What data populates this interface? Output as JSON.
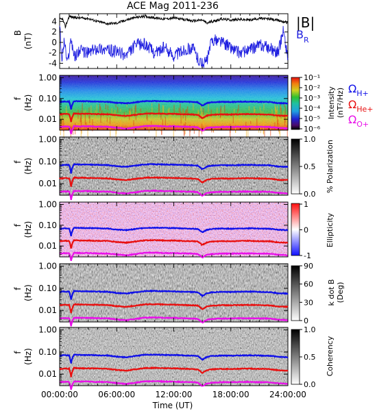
{
  "title": "ACE Mag 2011-236",
  "xaxis": {
    "label": "Time (UT)",
    "ticks": [
      "00:00:00",
      "06:00:00",
      "12:00:00",
      "18:00:00",
      "24:00:00"
    ],
    "range_hours": [
      0,
      24
    ]
  },
  "colors": {
    "B_total": "#000000",
    "B_R": "#1f1fe0",
    "H_plus": "#1010e8",
    "He_plus": "#e81010",
    "O_plus": "#e810e8"
  },
  "chart_data": [
    {
      "type": "line",
      "panel": "B",
      "ylabel_line1": "B",
      "ylabel_line2": "(nT)",
      "yticks": [
        "4",
        "2",
        "0",
        "-2",
        "-4"
      ],
      "ylim": [
        -5,
        5.5
      ],
      "legend": [
        "|B|",
        "B_R"
      ],
      "legend_text": {
        "bmag": "|B|",
        "br_main": "B",
        "br_sub": "R"
      },
      "series": [
        {
          "name": "|B|",
          "x": [
            0,
            0.3,
            0.6,
            1.0,
            1.5,
            2,
            3,
            4,
            5,
            6,
            7,
            8,
            9,
            10,
            11,
            12,
            13,
            14,
            15,
            15.5,
            16,
            17,
            18,
            19,
            20,
            21,
            22,
            23,
            24
          ],
          "values": [
            4.4,
            4.5,
            3.0,
            5.0,
            4.8,
            4.7,
            4.6,
            4.0,
            3.6,
            3.7,
            4.3,
            4.8,
            5.0,
            4.7,
            4.5,
            4.7,
            4.4,
            4.1,
            4.3,
            3.7,
            4.0,
            4.5,
            4.3,
            4.4,
            4.3,
            4.6,
            4.5,
            4.2,
            3.8
          ]
        },
        {
          "name": "B_R",
          "x": [
            0,
            0.2,
            0.5,
            0.8,
            1.2,
            1.6,
            2,
            3,
            4,
            5,
            6,
            7,
            8,
            9,
            10,
            11,
            12,
            13,
            14,
            14.5,
            15,
            15.5,
            16,
            17,
            18,
            19,
            20,
            21,
            22,
            23,
            23.5,
            24
          ],
          "values": [
            4.3,
            -3.5,
            0.5,
            -4.2,
            0.8,
            -3.0,
            -1.5,
            -2.0,
            -1.0,
            -1.5,
            -1.8,
            -2.5,
            -0.5,
            -0.3,
            -2.0,
            -1.0,
            -2.5,
            -1.5,
            -1.0,
            -3.0,
            -4.2,
            -3.5,
            0.5,
            0.2,
            -1.0,
            -2.0,
            -1.5,
            -0.5,
            -1.0,
            -2.0,
            2.5,
            -3.0
          ]
        }
      ]
    },
    {
      "type": "heatmap",
      "panel": "intensity",
      "ylabel_line1": "f",
      "ylabel_line2": "(Hz)",
      "yticks": [
        "1.00",
        "0.10",
        "0.01"
      ],
      "colorbar_label_line1": "Intensity",
      "colorbar_label_line2": "(nT²/Hz)",
      "colorbar_ticks": [
        "10⁻¹",
        "10⁻²",
        "10⁻³",
        "10⁻⁴",
        "10⁻⁵",
        "10⁻⁶"
      ],
      "colorbar_range": [
        "1e-6",
        "1e-1"
      ],
      "legend": [
        "Ω_H+",
        "Ω_He+",
        "Ω_O+"
      ],
      "legend_text": {
        "h_main": "Ω",
        "h_sub": "H+",
        "he_main": "Ω",
        "he_sub": "He+",
        "o_main": "Ω",
        "o_sub": "O+"
      }
    },
    {
      "type": "heatmap",
      "panel": "polarization",
      "ylabel_line1": "f",
      "ylabel_line2": "(Hz)",
      "yticks": [
        "1.00",
        "0.10",
        "0.01"
      ],
      "colorbar_label": "% Polarization",
      "colorbar_ticks": [
        "1.0",
        "0.5",
        "0.0"
      ]
    },
    {
      "type": "heatmap",
      "panel": "ellipticity",
      "ylabel_line1": "f",
      "ylabel_line2": "(Hz)",
      "yticks": [
        "1.00",
        "0.10",
        "0.01"
      ],
      "colorbar_label": "Ellipticity",
      "colorbar_ticks": [
        "1",
        "0",
        "-1"
      ]
    },
    {
      "type": "heatmap",
      "panel": "kdotb",
      "ylabel_line1": "f",
      "ylabel_line2": "(Hz)",
      "yticks": [
        "1.00",
        "0.10",
        "0.01"
      ],
      "colorbar_label_line1": "k dot B",
      "colorbar_label_line2": "(Deg)",
      "colorbar_ticks": [
        "90",
        "60",
        "30",
        "0"
      ]
    },
    {
      "type": "heatmap",
      "panel": "coherency",
      "ylabel_line1": "f",
      "ylabel_line2": "(Hz)",
      "yticks": [
        "1.00",
        "0.10",
        "0.01"
      ],
      "colorbar_label": "Coherency",
      "colorbar_ticks": [
        "1.0",
        "0.5",
        "0.0"
      ]
    }
  ],
  "gyrofrequency_lines": {
    "x": [
      0,
      0.5,
      1.0,
      1.2,
      1.5,
      2,
      3,
      4,
      5,
      6,
      7,
      8,
      9,
      10,
      11,
      12,
      13,
      14,
      14.5,
      15,
      15.5,
      16,
      17,
      18,
      19,
      20,
      21,
      22,
      23,
      24
    ],
    "H_plus_hz": [
      0.068,
      0.072,
      0.07,
      0.03,
      0.075,
      0.074,
      0.073,
      0.071,
      0.07,
      0.062,
      0.058,
      0.066,
      0.075,
      0.076,
      0.074,
      0.073,
      0.07,
      0.068,
      0.066,
      0.045,
      0.06,
      0.066,
      0.069,
      0.068,
      0.07,
      0.071,
      0.069,
      0.068,
      0.06,
      0.058
    ],
    "He_plus_hz": [
      0.017,
      0.018,
      0.0175,
      0.0075,
      0.019,
      0.0185,
      0.0183,
      0.0178,
      0.0175,
      0.0155,
      0.0145,
      0.0165,
      0.0188,
      0.019,
      0.0185,
      0.0183,
      0.0175,
      0.017,
      0.0165,
      0.0112,
      0.015,
      0.0165,
      0.0172,
      0.017,
      0.0175,
      0.0178,
      0.0172,
      0.017,
      0.015,
      0.0145
    ],
    "O_plus_hz": [
      0.0043,
      0.0045,
      0.0044,
      0.0019,
      0.0047,
      0.0046,
      0.0046,
      0.0044,
      0.0044,
      0.0039,
      0.0036,
      0.0041,
      0.0047,
      0.0048,
      0.0046,
      0.0046,
      0.0044,
      0.0043,
      0.0041,
      0.0028,
      0.0038,
      0.0041,
      0.0043,
      0.0043,
      0.0044,
      0.0044,
      0.0043,
      0.0043,
      0.0038,
      0.0036
    ]
  }
}
